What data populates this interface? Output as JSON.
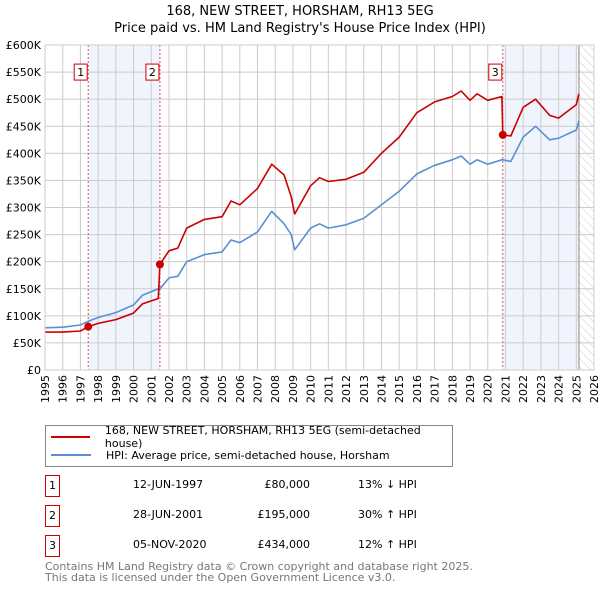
{
  "title_line1": "168, NEW STREET, HORSHAM, RH13 5EG",
  "title_line2": "Price paid vs. HM Land Registry's House Price Index (HPI)",
  "chart_data": {
    "type": "line",
    "title": "168, NEW STREET, HORSHAM, RH13 5EG — Price paid vs. HM Land Registry's House Price Index (HPI)",
    "xlim": [
      1995,
      2026
    ],
    "ylim": [
      0,
      600000
    ],
    "grid": true,
    "x_ticks": [
      1995,
      1996,
      1997,
      1998,
      1999,
      2000,
      2001,
      2002,
      2003,
      2004,
      2005,
      2006,
      2007,
      2008,
      2009,
      2010,
      2011,
      2012,
      2013,
      2014,
      2015,
      2016,
      2017,
      2018,
      2019,
      2020,
      2021,
      2022,
      2023,
      2024,
      2025,
      2026
    ],
    "y_ticks": [
      0,
      50000,
      100000,
      150000,
      200000,
      250000,
      300000,
      350000,
      400000,
      450000,
      500000,
      550000,
      600000
    ],
    "y_tick_labels": [
      "£0",
      "£50K",
      "£100K",
      "£150K",
      "£200K",
      "£250K",
      "£300K",
      "£350K",
      "£400K",
      "£450K",
      "£500K",
      "£550K",
      "£600K"
    ],
    "shaded_ranges": [
      [
        1997.45,
        2001.49
      ],
      [
        2020.85,
        2025.15
      ]
    ],
    "future_hatch_from": 2025.15,
    "series": [
      {
        "name": "168, NEW STREET, HORSHAM, RH13 5EG (semi-detached house)",
        "color": "#cc0000",
        "x": [
          1995,
          1996,
          1997,
          1997.44,
          1998,
          1999,
          2000,
          2000.5,
          2001.4,
          2001.49,
          2002,
          2002.5,
          2003,
          2004,
          2005,
          2005.5,
          2006,
          2007,
          2007.8,
          2008.5,
          2008.9,
          2009.1,
          2010,
          2010.5,
          2011,
          2012,
          2013,
          2014,
          2015,
          2016,
          2017,
          2018,
          2018.5,
          2019,
          2019.4,
          2020,
          2020.8,
          2020.85,
          2021.3,
          2022,
          2022.7,
          2023.5,
          2024,
          2025,
          2025.15
        ],
        "y": [
          70000,
          70000,
          72000,
          80000,
          86000,
          93000,
          105000,
          122000,
          132000,
          195000,
          220000,
          225000,
          262000,
          278000,
          283000,
          312000,
          305000,
          335000,
          380000,
          360000,
          320000,
          288000,
          340000,
          355000,
          348000,
          352000,
          365000,
          400000,
          430000,
          475000,
          495000,
          505000,
          515000,
          498000,
          510000,
          498000,
          505000,
          434000,
          432000,
          485000,
          500000,
          470000,
          465000,
          490000,
          510000
        ]
      },
      {
        "name": "HPI: Average price, semi-detached house, Horsham",
        "color": "#5b8fd4",
        "x": [
          1995,
          1996,
          1997,
          1997.44,
          1998,
          1999,
          2000,
          2000.5,
          2001.4,
          2001.49,
          2002,
          2002.5,
          2003,
          2004,
          2005,
          2005.5,
          2006,
          2007,
          2007.8,
          2008.5,
          2008.9,
          2009.1,
          2010,
          2010.5,
          2011,
          2012,
          2013,
          2014,
          2015,
          2016,
          2017,
          2018,
          2018.5,
          2019,
          2019.4,
          2020,
          2020.8,
          2020.85,
          2021.3,
          2022,
          2022.7,
          2023.5,
          2024,
          2025,
          2025.15
        ],
        "y": [
          78000,
          79000,
          83000,
          90000,
          97000,
          106000,
          120000,
          138000,
          150000,
          150000,
          170000,
          173000,
          200000,
          213000,
          218000,
          240000,
          235000,
          255000,
          293000,
          270000,
          250000,
          222000,
          262000,
          270000,
          262000,
          268000,
          280000,
          305000,
          330000,
          362000,
          378000,
          388000,
          395000,
          380000,
          388000,
          380000,
          388000,
          388000,
          385000,
          430000,
          450000,
          425000,
          428000,
          443000,
          460000
        ]
      }
    ],
    "sales": [
      {
        "label": "1",
        "x": 1997.44,
        "y": 80000
      },
      {
        "label": "2",
        "x": 2001.49,
        "y": 195000
      },
      {
        "label": "3",
        "x": 2020.85,
        "y": 434000
      }
    ]
  },
  "legend": {
    "property": "168, NEW STREET, HORSHAM, RH13 5EG (semi-detached house)",
    "hpi": "HPI: Average price, semi-detached house, Horsham"
  },
  "transactions": [
    {
      "num": "1",
      "date": "12-JUN-1997",
      "price": "£80,000",
      "hpi": "13% ↓ HPI"
    },
    {
      "num": "2",
      "date": "28-JUN-2001",
      "price": "£195,000",
      "hpi": "30% ↑ HPI"
    },
    {
      "num": "3",
      "date": "05-NOV-2020",
      "price": "£434,000",
      "hpi": "12% ↑ HPI"
    }
  ],
  "footer": {
    "line1": "Contains HM Land Registry data © Crown copyright and database right 2025.",
    "line2": "This data is licensed under the Open Government Licence v3.0."
  }
}
